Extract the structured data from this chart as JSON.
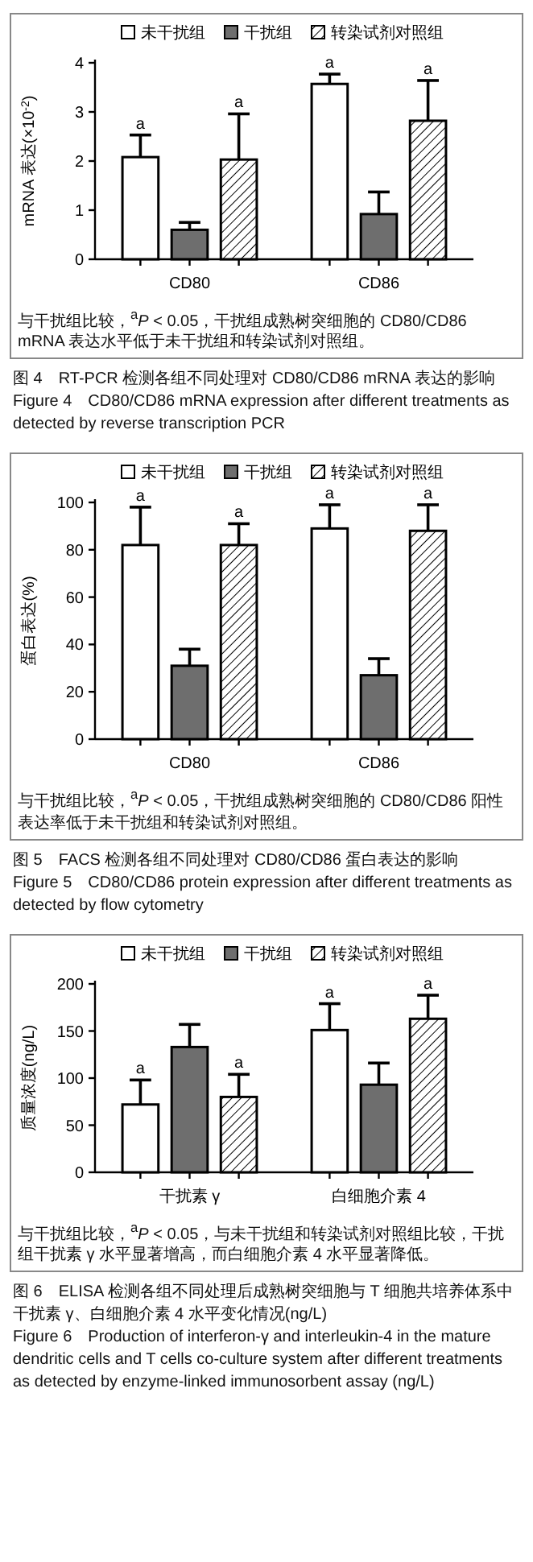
{
  "chart_data": [
    {
      "type": "bar",
      "title": "图 4　RT-PCR 检测各组不同处理对 CD80/CD86 mRNA 表达的影响",
      "subtitle": "Figure 4　CD80/CD86 mRNA expression after different treatments as detected by reverse transcription PCR",
      "ylabel": "mRNA 表达(×10$^{-2}$)",
      "categories": [
        "CD80",
        "CD86"
      ],
      "ylim": [
        0,
        4
      ],
      "yticks": [
        0,
        1,
        2,
        3,
        4
      ],
      "legend": "top",
      "series": [
        {
          "name": "未干扰组",
          "color": "#ffffff",
          "values": [
            2.08,
            3.57
          ],
          "errors": [
            [
              2.08,
              2.53
            ],
            [
              3.57,
              3.77
            ]
          ],
          "value_labels": [
            "a",
            "a"
          ]
        },
        {
          "name": "干扰组",
          "color": "#6e6e6e",
          "values": [
            0.6,
            0.92
          ],
          "errors": [
            [
              0.6,
              0.75
            ],
            [
              0.92,
              1.37
            ]
          ],
          "value_labels": [
            null,
            null
          ]
        },
        {
          "name": "转染试剂对照组",
          "color": "#000000",
          "values": [
            2.03,
            2.82
          ],
          "errors": [
            [
              2.03,
              2.96
            ],
            [
              2.82,
              3.64
            ]
          ],
          "value_labels": [
            "a",
            "a"
          ]
        }
      ],
      "annotations": [
        "与干扰组比较，$^{a}$*P* < 0.05，干扰组成熟树突细胞的 CD80/CD86 mRNA 表达水平低于未干扰组和转染试剂对照组。"
      ]
    },
    {
      "type": "bar",
      "title": "图 5　FACS 检测各组不同处理对 CD80/CD86 蛋白表达的影响",
      "subtitle": "Figure 5　CD80/CD86 protein expression after different treatments as detected by flow cytometry",
      "ylabel": "蛋白表达(%)",
      "categories": [
        "CD80",
        "CD86"
      ],
      "ylim": [
        0,
        100
      ],
      "yticks": [
        0,
        20,
        40,
        60,
        80,
        100
      ],
      "legend": "top",
      "series": [
        {
          "name": "未干扰组",
          "color": "#ffffff",
          "values": [
            82,
            89
          ],
          "errors": [
            [
              82,
              98
            ],
            [
              89,
              99
            ]
          ],
          "value_labels": [
            "a",
            "a"
          ]
        },
        {
          "name": "干扰组",
          "color": "#6e6e6e",
          "values": [
            31,
            27
          ],
          "errors": [
            [
              31,
              38
            ],
            [
              27,
              34
            ]
          ],
          "value_labels": [
            null,
            null
          ]
        },
        {
          "name": "转染试剂对照组",
          "color": "#000000",
          "values": [
            82,
            88
          ],
          "errors": [
            [
              82,
              91
            ],
            [
              88,
              99
            ]
          ],
          "value_labels": [
            "a",
            "a"
          ]
        }
      ],
      "annotations": [
        "与干扰组比较，$^{a}$*P* < 0.05，干扰组成熟树突细胞的 CD80/CD86 阳性表达率低于未干扰组和转染试剂对照组。"
      ]
    },
    {
      "type": "bar",
      "title": "图 6　ELISA 检测各组不同处理后成熟树突细胞与 T 细胞共培养体系中干扰素 γ、白细胞介素 4 水平变化情况(ng/L)",
      "subtitle": "Figure 6　Production of interferon-γ and interleukin-4 in the mature dendritic cells and T cells co-culture system after different treatments as detected by enzyme-linked immunosorbent assay (ng/L)",
      "ylabel": "质量浓度(ng/L)",
      "categories": [
        "干扰素 γ",
        "白细胞介素 4"
      ],
      "ylim": [
        0,
        200
      ],
      "yticks": [
        0,
        50,
        100,
        150,
        200
      ],
      "legend": "top",
      "series": [
        {
          "name": "未干扰组",
          "color": "#ffffff",
          "values": [
            72,
            151
          ],
          "errors": [
            [
              72,
              98
            ],
            [
              151,
              179
            ]
          ],
          "value_labels": [
            "a",
            "a"
          ]
        },
        {
          "name": "干扰组",
          "color": "#6e6e6e",
          "values": [
            133,
            93
          ],
          "errors": [
            [
              133,
              157
            ],
            [
              93,
              116
            ]
          ],
          "value_labels": [
            null,
            null
          ]
        },
        {
          "name": "转染试剂对照组",
          "color": "#000000",
          "values": [
            80,
            163
          ],
          "errors": [
            [
              80,
              104
            ],
            [
              163,
              188
            ]
          ],
          "value_labels": [
            "a",
            "a"
          ]
        }
      ],
      "annotations": [
        "与干扰组比较，$^{a}$*P* < 0.05，与未干扰组和转染试剂对照组比较，干扰组干扰素 γ 水平显著增高，而白细胞介素 4 水平显著降低。"
      ]
    }
  ]
}
